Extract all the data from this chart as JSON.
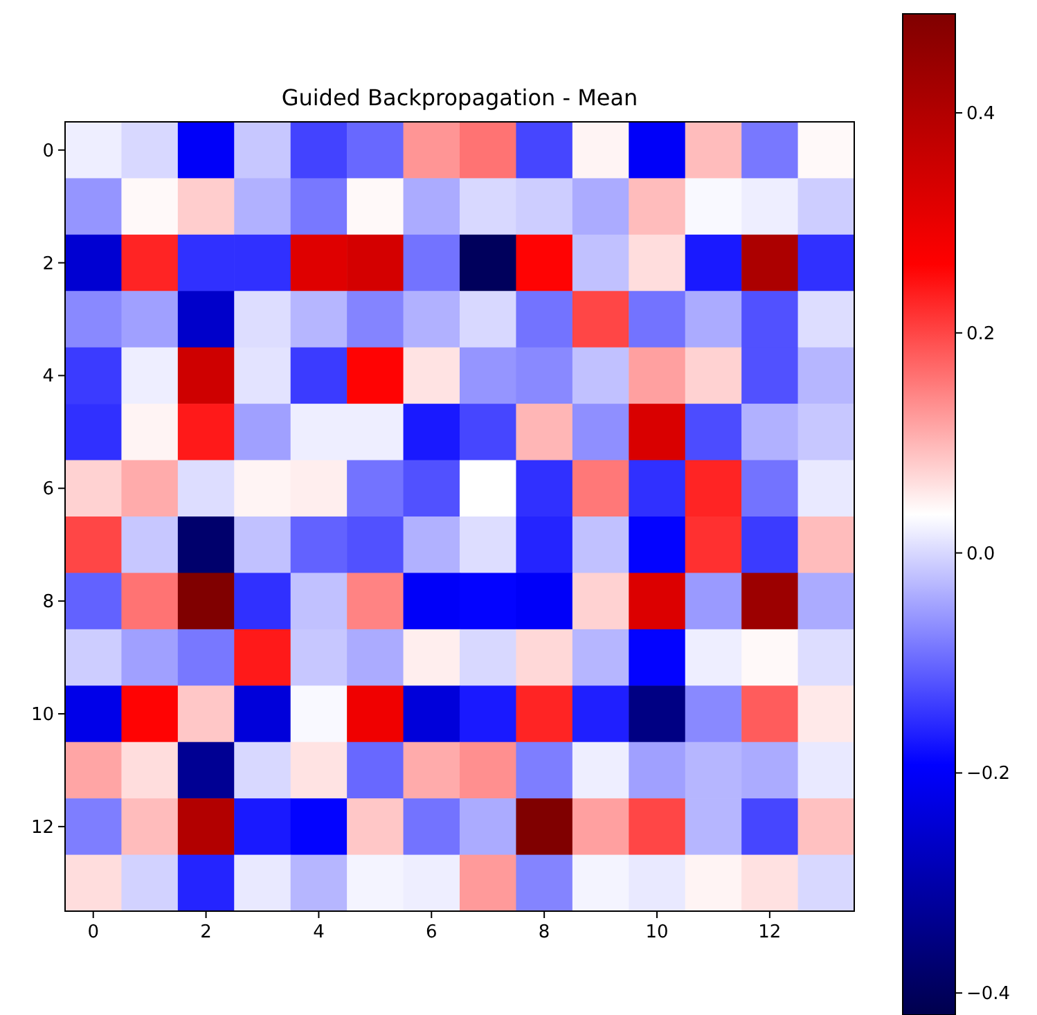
{
  "chart_data": {
    "type": "heatmap",
    "title": "Guided Backpropagation - Mean",
    "categories": [
      "0",
      null,
      "2",
      null,
      "4",
      null,
      "6",
      null,
      "8",
      null,
      "10",
      null,
      "12",
      null
    ],
    "y_categories": [
      "0",
      null,
      "2",
      null,
      "4",
      null,
      "6",
      null,
      "8",
      null,
      "10",
      null,
      "12",
      null
    ],
    "cells": [
      [
        0.02,
        0.0,
        -0.2,
        -0.015,
        -0.133,
        -0.1,
        0.13,
        0.16,
        -0.13,
        0.045,
        -0.2,
        0.095,
        -0.085,
        0.04
      ],
      [
        -0.06,
        0.04,
        0.08,
        -0.035,
        -0.085,
        0.04,
        -0.04,
        0.0,
        -0.01,
        -0.04,
        0.095,
        0.03,
        0.02,
        -0.01
      ],
      [
        -0.25,
        0.23,
        -0.15,
        -0.15,
        0.32,
        0.34,
        -0.09,
        -0.4,
        0.26,
        -0.02,
        0.065,
        -0.17,
        0.41,
        -0.15
      ],
      [
        -0.07,
        -0.05,
        -0.26,
        0.005,
        -0.03,
        -0.075,
        -0.035,
        0.0,
        -0.09,
        0.2,
        -0.09,
        -0.04,
        -0.12,
        0.005
      ],
      [
        -0.14,
        0.02,
        0.35,
        0.01,
        -0.14,
        0.26,
        0.06,
        -0.06,
        -0.07,
        -0.02,
        0.12,
        0.075,
        -0.12,
        -0.03
      ],
      [
        -0.15,
        0.045,
        0.24,
        -0.05,
        0.02,
        0.02,
        -0.17,
        -0.13,
        0.1,
        -0.065,
        0.33,
        -0.125,
        -0.035,
        -0.015
      ],
      [
        0.075,
        0.11,
        0.005,
        0.045,
        0.05,
        -0.09,
        -0.12,
        0.035,
        -0.15,
        0.155,
        -0.15,
        0.23,
        -0.09,
        0.015
      ],
      [
        0.2,
        -0.015,
        -0.38,
        -0.02,
        -0.105,
        -0.12,
        -0.035,
        0.005,
        -0.16,
        -0.02,
        -0.19,
        0.22,
        -0.14,
        0.095
      ],
      [
        -0.105,
        0.16,
        0.49,
        -0.15,
        -0.02,
        0.146,
        -0.2,
        -0.19,
        -0.2,
        0.075,
        0.325,
        -0.055,
        0.44,
        -0.04
      ],
      [
        -0.01,
        -0.05,
        -0.085,
        0.24,
        -0.015,
        -0.04,
        0.05,
        0.0,
        0.07,
        -0.03,
        -0.19,
        0.02,
        0.04,
        0.005
      ],
      [
        -0.22,
        0.26,
        0.085,
        -0.24,
        0.03,
        0.29,
        -0.24,
        -0.17,
        0.23,
        -0.165,
        -0.35,
        -0.07,
        0.18,
        0.055
      ],
      [
        0.115,
        0.065,
        -0.33,
        0.0,
        0.06,
        -0.1,
        0.11,
        0.135,
        -0.08,
        0.02,
        -0.05,
        -0.03,
        -0.04,
        0.015
      ],
      [
        -0.08,
        0.095,
        0.4,
        -0.17,
        -0.19,
        0.085,
        -0.09,
        -0.04,
        0.49,
        0.12,
        0.2,
        -0.03,
        -0.13,
        0.09
      ],
      [
        0.065,
        -0.005,
        -0.16,
        0.015,
        -0.03,
        0.025,
        0.02,
        0.125,
        -0.075,
        0.025,
        0.015,
        0.045,
        0.062,
        0.0
      ]
    ],
    "clim": [
      -0.42,
      0.49
    ],
    "cticks": [
      {
        "value": -0.4,
        "label": "−0.4"
      },
      {
        "value": -0.2,
        "label": "−0.2"
      },
      {
        "value": 0,
        "label": "0.0"
      },
      {
        "value": 0.2,
        "label": "0.2"
      },
      {
        "value": 0.4,
        "label": "0.4"
      }
    ]
  }
}
